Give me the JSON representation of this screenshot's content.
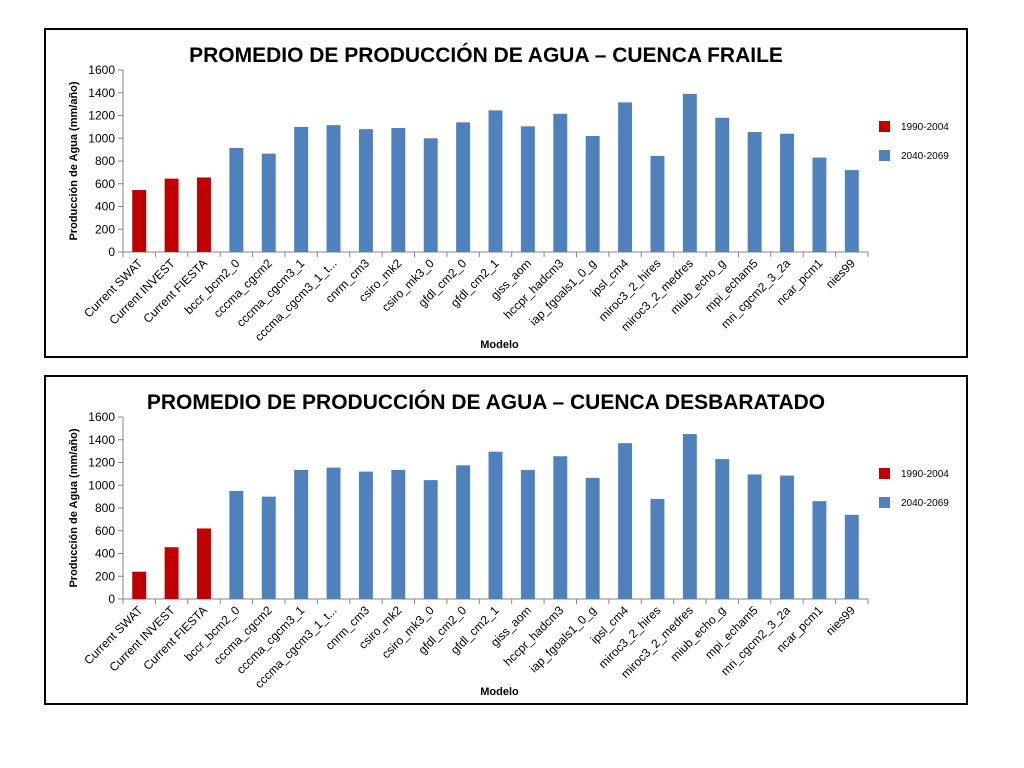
{
  "chart_data": [
    {
      "type": "bar",
      "title": "PROMEDIO DE PRODUCCIÓN DE AGUA – CUENCA FRAILE",
      "xlabel": "Modelo",
      "ylabel": "Producción de Agua (mm/año)",
      "ylim": [
        0,
        1600
      ],
      "yticks": [
        0,
        200,
        400,
        600,
        800,
        1000,
        1200,
        1400,
        1600
      ],
      "grid": false,
      "legend_position": "right",
      "categories": [
        "Current SWAT",
        "Current INVEST",
        "Current FIESTA",
        "bccr_bcm2_0",
        "cccma_cgcm2",
        "cccma_cgcm3_1",
        "cccma_cgcm3_1_t...",
        "cnrm_cm3",
        "csiro_mk2",
        "csiro_mk3_0",
        "gfdl_cm2_0",
        "gfdl_cm2_1",
        "giss_aom",
        "hccpr_hadcm3",
        "iap_fgoals1_0_g",
        "ipsl_cm4",
        "miroc3_2_hires",
        "miroc3_2_medres",
        "miub_echo_g",
        "mpi_echam5",
        "mri_cgcm2_3_2a",
        "ncar_pcm1",
        "nies99"
      ],
      "values": [
        545,
        645,
        655,
        915,
        865,
        1100,
        1115,
        1080,
        1090,
        1000,
        1140,
        1245,
        1105,
        1215,
        1020,
        1315,
        845,
        1390,
        1180,
        1055,
        1040,
        830,
        720
      ],
      "series_index": [
        0,
        0,
        0,
        1,
        1,
        1,
        1,
        1,
        1,
        1,
        1,
        1,
        1,
        1,
        1,
        1,
        1,
        1,
        1,
        1,
        1,
        1,
        1
      ],
      "series": [
        {
          "name": "1990-2004",
          "color": "#C00000"
        },
        {
          "name": "2040-2069",
          "color": "#4F81BD"
        }
      ]
    },
    {
      "type": "bar",
      "title": "PROMEDIO DE PRODUCCIÓN DE AGUA – CUENCA DESBARATADO",
      "xlabel": "Modelo",
      "ylabel": "Producción de Agua (mm/año)",
      "ylim": [
        0,
        1600
      ],
      "yticks": [
        0,
        200,
        400,
        600,
        800,
        1000,
        1200,
        1400,
        1600
      ],
      "grid": false,
      "legend_position": "right",
      "categories": [
        "Current SWAT",
        "Current INVEST",
        "Current FIESTA",
        "bccr_bcm2_0",
        "cccma_cgcm2",
        "cccma_cgcm3_1",
        "cccma_cgcm3_1_t...",
        "cnrm_cm3",
        "csiro_mk2",
        "csiro_mk3_0",
        "gfdl_cm2_0",
        "gfdl_cm2_1",
        "giss_aom",
        "hccpr_hadcm3",
        "iap_fgoals1_0_g",
        "ipsl_cm4",
        "miroc3_2_hires",
        "miroc3_2_medres",
        "miub_echo_g",
        "mpi_echam5",
        "mri_cgcm2_3_2a",
        "ncar_pcm1",
        "nies99"
      ],
      "values": [
        240,
        455,
        620,
        950,
        900,
        1135,
        1155,
        1120,
        1135,
        1045,
        1175,
        1295,
        1135,
        1255,
        1065,
        1370,
        880,
        1450,
        1230,
        1095,
        1085,
        860,
        740
      ],
      "series_index": [
        0,
        0,
        0,
        1,
        1,
        1,
        1,
        1,
        1,
        1,
        1,
        1,
        1,
        1,
        1,
        1,
        1,
        1,
        1,
        1,
        1,
        1,
        1
      ],
      "series": [
        {
          "name": "1990-2004",
          "color": "#C00000"
        },
        {
          "name": "2040-2069",
          "color": "#4F81BD"
        }
      ]
    }
  ]
}
